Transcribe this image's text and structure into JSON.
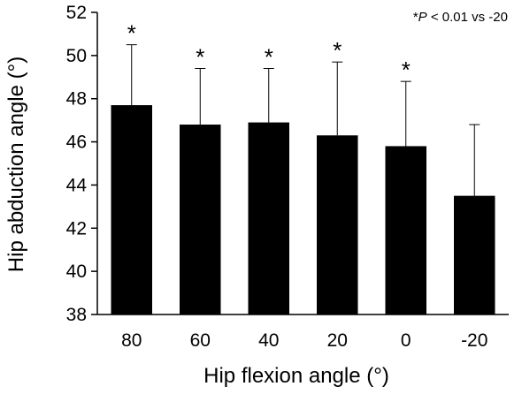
{
  "chart_data": {
    "type": "bar",
    "title": "",
    "xlabel": "Hip flexion angle (°)",
    "ylabel": "Hip abduction angle (°)",
    "categories": [
      "80",
      "60",
      "40",
      "20",
      "0",
      "-20"
    ],
    "series": [
      {
        "values": [
          47.7,
          46.8,
          46.9,
          46.3,
          45.8,
          43.5
        ],
        "error_upper": [
          2.8,
          2.6,
          2.5,
          3.4,
          3.0,
          3.3
        ]
      }
    ],
    "significance": [
      "*",
      "*",
      "*",
      "*",
      "*",
      ""
    ],
    "annotation_prefix": "*",
    "annotation_p": "P",
    "annotation_rest": " < 0.01 vs -20",
    "ylim": [
      38,
      52
    ],
    "yticks": [
      38,
      40,
      42,
      44,
      46,
      48,
      50,
      52
    ],
    "grid": false,
    "bar_color": "#000000"
  }
}
